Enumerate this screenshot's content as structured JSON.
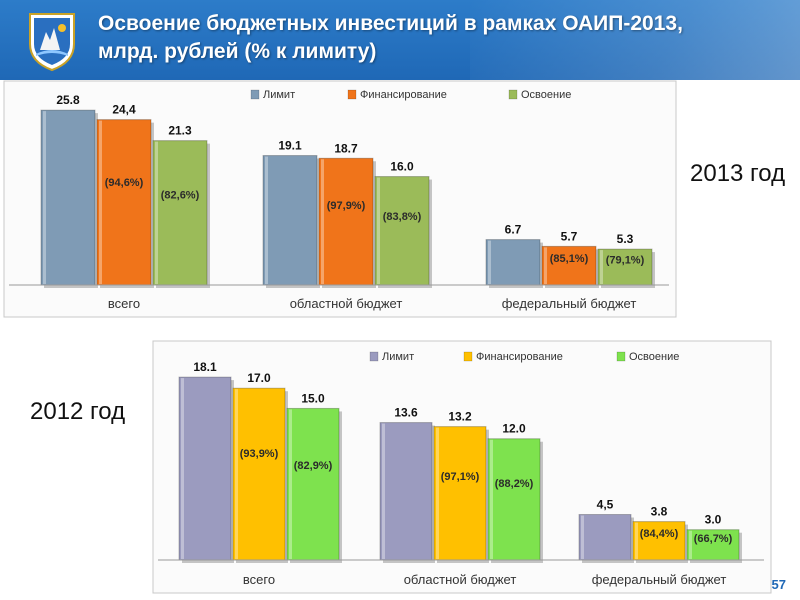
{
  "header": {
    "title_line1": "Освоение бюджетных инвестиций в рамках ОАИП-2013,",
    "title_line2": "млрд. рублей (% к лимиту)"
  },
  "year_labels": {
    "y2013": "2013 год",
    "y2012": "2012 год"
  },
  "page_number": "57",
  "colors": {
    "limit_2013": "#7f9bb5",
    "financing_2013": "#f0741a",
    "development_2013": "#9bbb59",
    "limit_2012": "#9b9bbf",
    "financing_2012": "#ffc000",
    "development_2012": "#7ee24e",
    "header": "#1f68b6"
  },
  "chart_data": [
    {
      "type": "bar",
      "categories": [
        "всего",
        "областной бюджет",
        "федеральный бюджет"
      ],
      "series": [
        {
          "name": "Лимит",
          "values": [
            25.8,
            19.1,
            6.7
          ],
          "labels": [
            "25.8",
            "19.1",
            "6.7"
          ],
          "pct": [
            "",
            "",
            ""
          ]
        },
        {
          "name": "Финансирование",
          "values": [
            24.4,
            18.7,
            5.7
          ],
          "labels": [
            "24,4",
            "18.7",
            "5.7"
          ],
          "pct": [
            "(94,6%)",
            "(97,9%)",
            "(85,1%)"
          ]
        },
        {
          "name": "Освоение",
          "values": [
            21.3,
            16.0,
            5.3
          ],
          "labels": [
            "21.3",
            "16.0",
            "5.3"
          ],
          "pct": [
            "(82,6%)",
            "(83,8%)",
            "(79,1%)"
          ]
        }
      ],
      "ylim": [
        0,
        27
      ],
      "legend": "top"
    },
    {
      "type": "bar",
      "categories": [
        "всего",
        "областной бюджет",
        "федеральный бюджет"
      ],
      "series": [
        {
          "name": "Лимит",
          "values": [
            18.1,
            13.6,
            4.5
          ],
          "labels": [
            "18.1",
            "13.6",
            "4,5"
          ],
          "pct": [
            "",
            "",
            ""
          ]
        },
        {
          "name": "Финансирование",
          "values": [
            17.0,
            13.2,
            3.8
          ],
          "labels": [
            "17.0",
            "13.2",
            "3.8"
          ],
          "pct": [
            "(93,9%)",
            "(97,1%)",
            "(84,4%)"
          ]
        },
        {
          "name": "Освоение",
          "values": [
            15.0,
            12.0,
            3.0
          ],
          "labels": [
            "15.0",
            "12.0",
            "3.0"
          ],
          "pct": [
            "(82,9%)",
            "(88,2%)",
            "(66,7%)"
          ]
        }
      ],
      "ylim": [
        0,
        19
      ],
      "legend": "top"
    }
  ]
}
